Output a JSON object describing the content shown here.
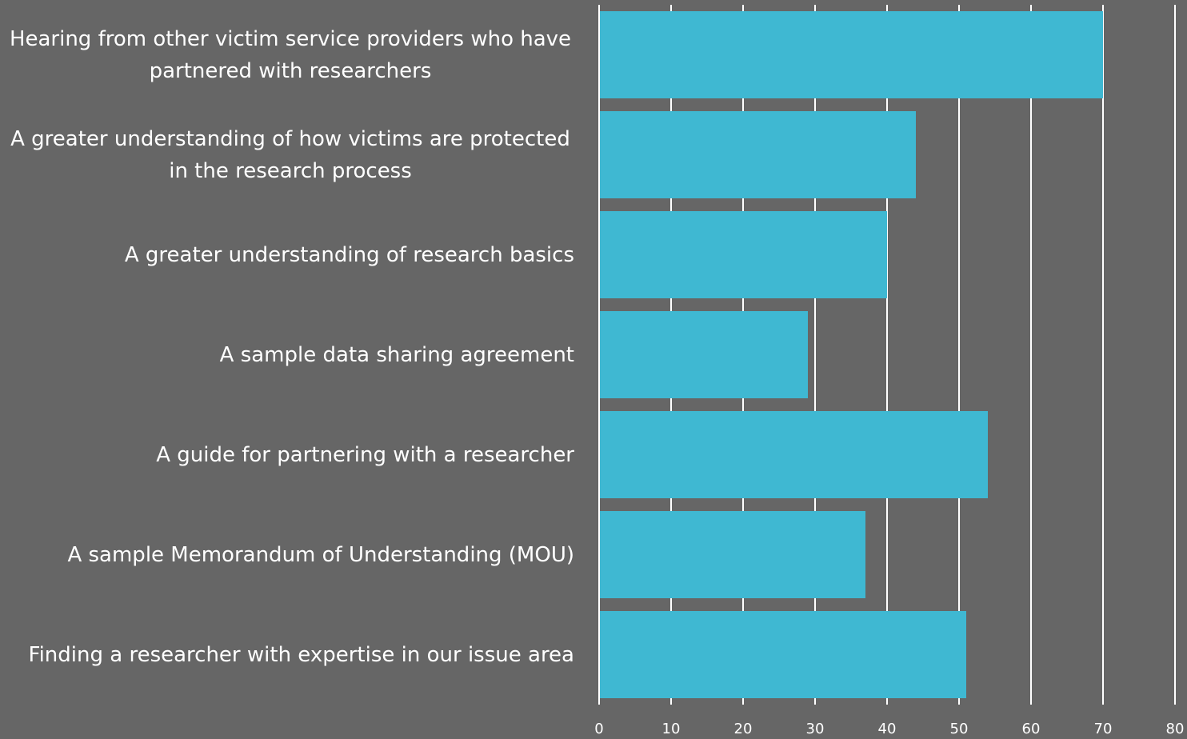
{
  "chart_data": {
    "type": "bar",
    "orientation": "horizontal",
    "categories": [
      "Hearing from other victim service providers who have partnered with researchers",
      "A greater understanding of how victims are protected in the research process",
      "A greater understanding of research basics",
      "A sample data sharing agreement",
      "A guide for partnering with a researcher",
      "A sample Memorandum of Understanding (MOU)",
      "Finding a researcher with expertise in our issue area"
    ],
    "values": [
      70,
      44,
      40,
      29,
      54,
      37,
      51
    ],
    "color": "#3fb8d2",
    "xlim": [
      0,
      80
    ],
    "xticks": [
      0,
      10,
      20,
      30,
      40,
      50,
      60,
      70,
      80
    ],
    "grid": true
  }
}
